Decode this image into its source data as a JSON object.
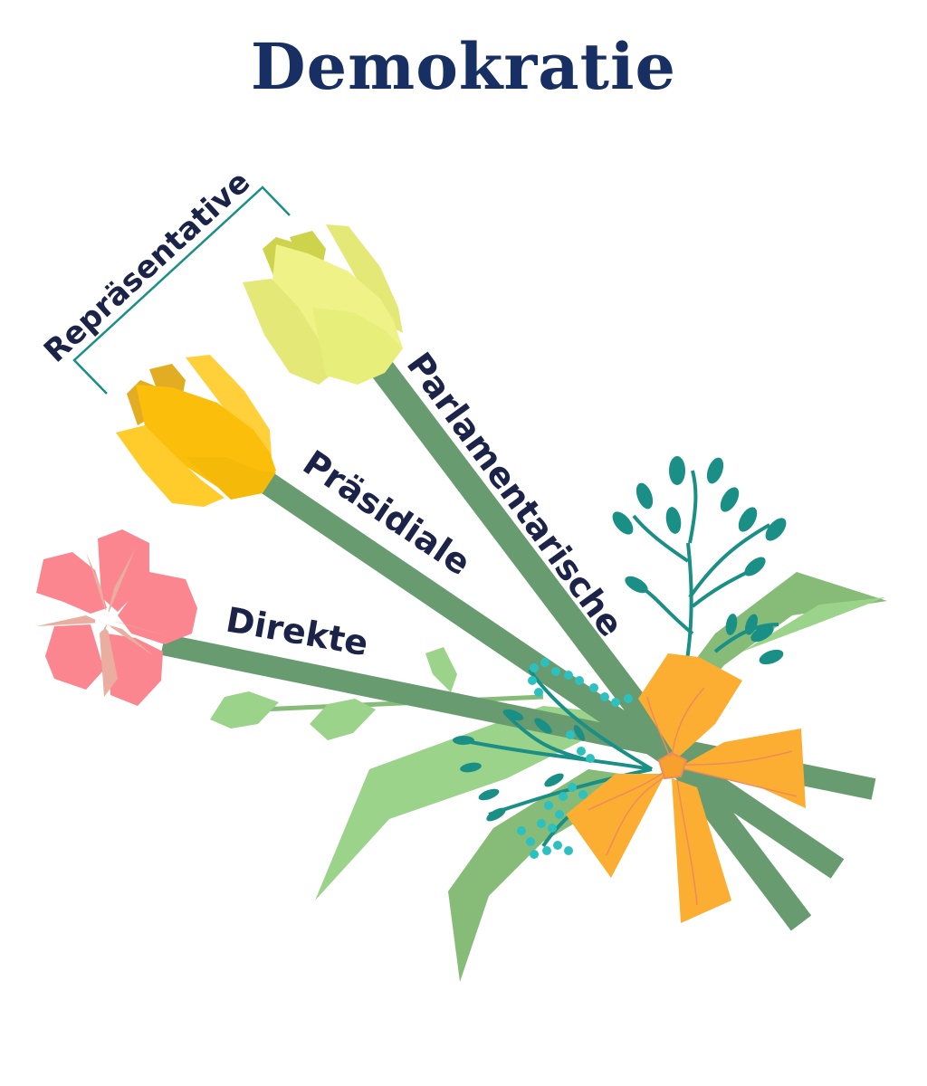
{
  "title": "Demokratie",
  "bracket_label": "Repräsentative",
  "flowers": [
    {
      "label": "Parlamentarische",
      "kind": "tulip",
      "color": "#e3e877"
    },
    {
      "label": "Präsidiale",
      "kind": "tulip",
      "color": "#fbbf0b"
    },
    {
      "label": "Direkte",
      "kind": "blossom",
      "color": "#fb8690"
    }
  ],
  "colors": {
    "title": "#172f63",
    "label": "#1b2448",
    "stem": "#689c70",
    "leaf_light": "#9bd38a",
    "leaf_mid": "#86bb78",
    "sprig": "#1a8f86",
    "dots": "#2cc1c0",
    "ribbon": "#fbae32",
    "bracket": "#1a8f86"
  }
}
